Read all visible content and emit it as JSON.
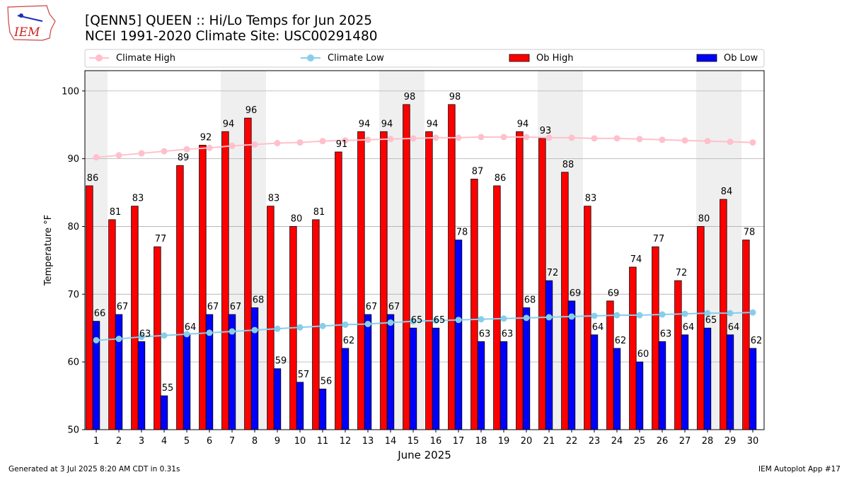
{
  "header": {
    "logo_text": "IEM",
    "title_line1": "[QENN5] QUEEN :: Hi/Lo Temps for Jun 2025",
    "title_line2": "NCEI 1991-2020 Climate Site: USC00291480"
  },
  "footer": {
    "generated": "Generated at 3 Jul 2025 8:20 AM CDT in 0.31s",
    "app": "IEM Autoplot App #17"
  },
  "colors": {
    "ob_high": "#ff0000",
    "ob_low": "#0000ff",
    "climate_high": "#ffc0cb",
    "climate_low": "#87ceeb",
    "weekend_shade": "#efefef",
    "grid": "#b0b0b0"
  },
  "chart_data": {
    "type": "bar",
    "title": "[QENN5] QUEEN :: Hi/Lo Temps for Jun 2025",
    "subtitle": "NCEI 1991-2020 Climate Site: USC00291480",
    "xlabel": "June 2025",
    "ylabel": "Temperature °F",
    "ylim": [
      50,
      103
    ],
    "yticks": [
      50,
      60,
      70,
      80,
      90,
      100
    ],
    "grid": true,
    "legend_position": "top",
    "categories": [
      1,
      2,
      3,
      4,
      5,
      6,
      7,
      8,
      9,
      10,
      11,
      12,
      13,
      14,
      15,
      16,
      17,
      18,
      19,
      20,
      21,
      22,
      23,
      24,
      25,
      26,
      27,
      28,
      29,
      30
    ],
    "shaded_days": [
      1,
      7,
      8,
      14,
      15,
      21,
      22,
      28,
      29
    ],
    "series": [
      {
        "name": "Ob High",
        "kind": "bar",
        "values": [
          86,
          81,
          83,
          77,
          89,
          92,
          94,
          96,
          83,
          80,
          81,
          91,
          94,
          94,
          98,
          94,
          98,
          87,
          86,
          94,
          93,
          88,
          83,
          69,
          74,
          77,
          72,
          80,
          84,
          78
        ]
      },
      {
        "name": "Ob Low",
        "kind": "bar",
        "values": [
          66,
          67,
          63,
          55,
          64,
          67,
          67,
          68,
          59,
          57,
          56,
          62,
          67,
          67,
          65,
          65,
          78,
          63,
          63,
          68,
          72,
          69,
          64,
          62,
          60,
          63,
          64,
          65,
          64,
          62
        ]
      },
      {
        "name": "Climate High",
        "kind": "line",
        "values": [
          90.2,
          90.5,
          90.8,
          91.1,
          91.4,
          91.6,
          91.9,
          92.1,
          92.3,
          92.4,
          92.6,
          92.7,
          92.8,
          92.9,
          93.0,
          93.1,
          93.1,
          93.2,
          93.2,
          93.2,
          93.1,
          93.1,
          93.0,
          93.0,
          92.9,
          92.8,
          92.7,
          92.6,
          92.5,
          92.4
        ]
      },
      {
        "name": "Climate Low",
        "kind": "line",
        "values": [
          63.2,
          63.4,
          63.7,
          63.9,
          64.1,
          64.3,
          64.5,
          64.7,
          64.9,
          65.1,
          65.3,
          65.5,
          65.6,
          65.8,
          66.0,
          66.1,
          66.2,
          66.3,
          66.4,
          66.5,
          66.6,
          66.7,
          66.8,
          66.9,
          66.9,
          67.0,
          67.1,
          67.2,
          67.2,
          67.3
        ]
      }
    ]
  }
}
